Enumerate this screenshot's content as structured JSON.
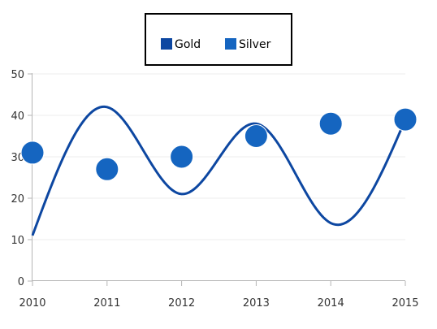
{
  "chart_data": {
    "type": "line",
    "x": [
      "2010",
      "2011",
      "2012",
      "2013",
      "2014",
      "2015"
    ],
    "ylim": [
      0,
      50
    ],
    "yticks": [
      "0",
      "10",
      "20",
      "30",
      "40",
      "50"
    ],
    "grid": true,
    "legend_position": "top-center",
    "series": [
      {
        "name": "Gold",
        "type": "spline",
        "color": "#0d47a1",
        "values": [
          11,
          42,
          21,
          38,
          14,
          39
        ]
      },
      {
        "name": "Silver",
        "type": "scatter",
        "color": "#1565c0",
        "values": [
          31,
          27,
          30,
          35,
          38,
          39
        ]
      }
    ]
  }
}
